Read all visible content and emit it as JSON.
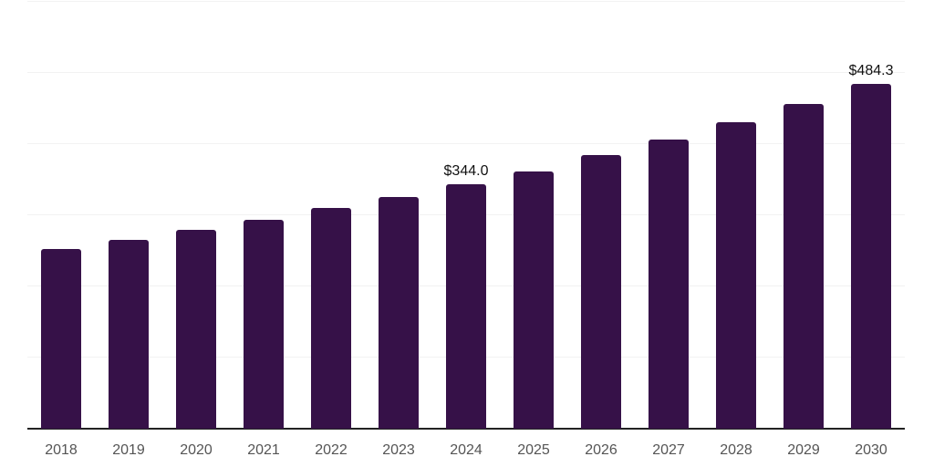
{
  "chart_data": {
    "type": "bar",
    "title": "",
    "xlabel": "",
    "ylabel": "",
    "categories": [
      "2018",
      "2019",
      "2020",
      "2021",
      "2022",
      "2023",
      "2024",
      "2025",
      "2026",
      "2027",
      "2028",
      "2029",
      "2030"
    ],
    "values": [
      252,
      265,
      279,
      293,
      310,
      326,
      344.0,
      362,
      385,
      407,
      431,
      457,
      484.3
    ],
    "value_labels": {
      "2024": "$344.0",
      "2030": "$484.3"
    },
    "ylim": [
      0,
      600
    ],
    "gridline_step": 100,
    "grid": true,
    "legend_position": "none",
    "y_axis_labels_visible": false,
    "colors": {
      "bar": "#361148",
      "gridline": "#f2f2f2",
      "axis_line": "#222222",
      "tick_label": "#555555",
      "value_label": "#111111",
      "background": "#ffffff"
    }
  }
}
